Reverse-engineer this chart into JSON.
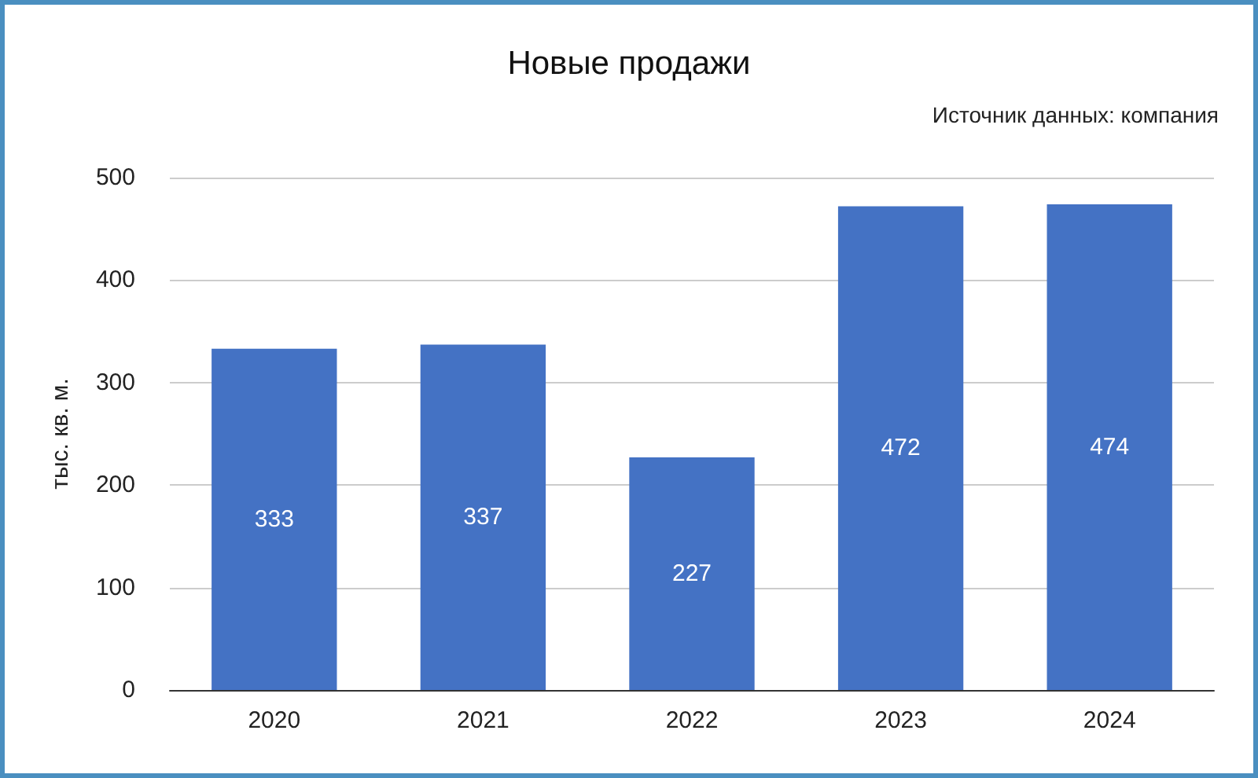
{
  "chart_data": {
    "type": "bar",
    "title": "Новые продажи",
    "annotations": [
      "Источник данных: компания"
    ],
    "ylabel": "тыс. кв. м.",
    "categories": [
      "2020",
      "2021",
      "2022",
      "2023",
      "2024"
    ],
    "values": [
      333,
      337,
      227,
      472,
      474
    ],
    "color": "#4472c4",
    "ylim": [
      0,
      500
    ],
    "yticks": [
      0,
      100,
      200,
      300,
      400,
      500
    ],
    "grid": "y",
    "data_labels": true
  }
}
